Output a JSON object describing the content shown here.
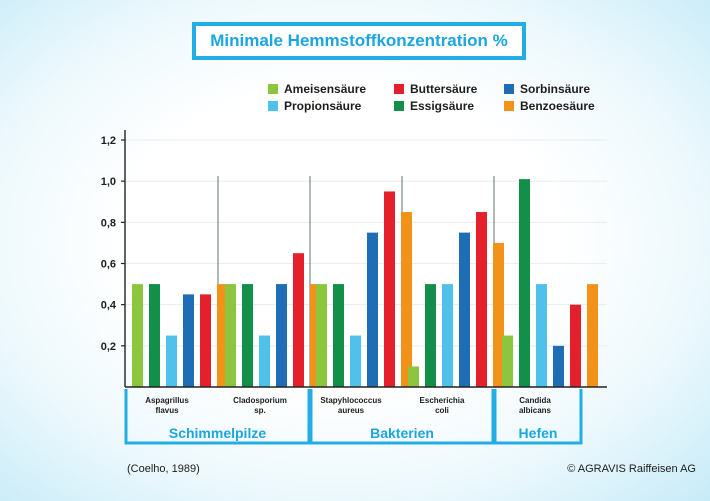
{
  "header": {
    "title": "Minimale Hemmstoffkonzentration %"
  },
  "legend": [
    {
      "name": "Ameisensäure",
      "color": "#8cc63f"
    },
    {
      "name": "Buttersäure",
      "color": "#e3202b"
    },
    {
      "name": "Sorbinsäure",
      "color": "#1f6db5"
    },
    {
      "name": "Propionsäure",
      "color": "#4fc1ea"
    },
    {
      "name": "Essigsäure",
      "color": "#12904a"
    },
    {
      "name": "Benzoesäure",
      "color": "#f39219"
    }
  ],
  "groups": [
    {
      "label": "Schimmelpilze"
    },
    {
      "label": "Bakterien"
    },
    {
      "label": "Hefen"
    }
  ],
  "chart_data": {
    "type": "bar",
    "categories": [
      [
        "Aspagrillus",
        "flavus"
      ],
      [
        "Cladosporium",
        "sp."
      ],
      [
        "Stapyhlococcus",
        "aureus"
      ],
      [
        "Escherichia",
        "coli"
      ],
      [
        "Candida",
        "albicans"
      ]
    ],
    "series": [
      {
        "name": "Ameisensäure",
        "color": "#8cc63f",
        "values": [
          0.5,
          0.5,
          0.5,
          0.1,
          0.25
        ]
      },
      {
        "name": "Essigsäure",
        "color": "#12904a",
        "values": [
          0.5,
          0.5,
          0.5,
          0.5,
          1.01
        ]
      },
      {
        "name": "Propionsäure",
        "color": "#4fc1ea",
        "values": [
          0.25,
          0.25,
          0.25,
          0.5,
          0.5
        ]
      },
      {
        "name": "Sorbinsäure",
        "color": "#1f6db5",
        "values": [
          0.45,
          0.5,
          0.75,
          0.75,
          0.2
        ]
      },
      {
        "name": "Buttersäure",
        "color": "#e3202b",
        "values": [
          0.45,
          0.65,
          0.95,
          0.85,
          0.4
        ]
      },
      {
        "name": "Benzoesäure",
        "color": "#f39219",
        "values": [
          0.5,
          0.5,
          0.85,
          0.7,
          0.5
        ]
      }
    ],
    "yticks": [
      "0,2",
      "0,4",
      "0,6",
      "0,8",
      "1,0",
      "1,2"
    ],
    "ytick_values": [
      0.2,
      0.4,
      0.6,
      0.8,
      1.0,
      1.2
    ],
    "ylim": [
      0,
      1.2
    ],
    "title": "Minimale Hemmstoffkonzentration %"
  },
  "footer": {
    "source": "(Coelho, 1989)",
    "copyright": "© AGRAVIS Raiffeisen AG"
  }
}
